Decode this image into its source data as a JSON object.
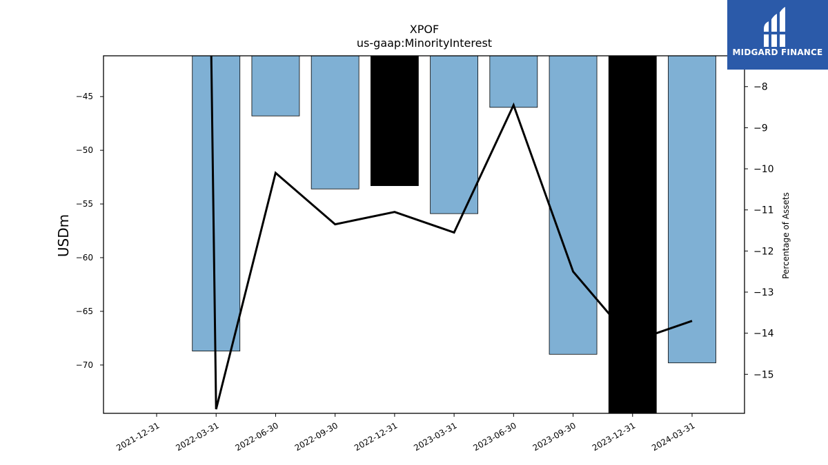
{
  "chart_data": {
    "type": "bar",
    "title": "XPOF",
    "subtitle": "us-gaap:MinorityInterest",
    "ylabel": "USDm",
    "y2label": "Percentage of Assets",
    "categories": [
      "2021-12-31",
      "2022-03-31",
      "2022-06-30",
      "2022-09-30",
      "2022-12-31",
      "2023-03-31",
      "2023-06-30",
      "2023-09-30",
      "2023-12-31",
      "2024-03-31"
    ],
    "ylim": [
      -74.5,
      -41.2
    ],
    "y2lim": [
      -15.95,
      -7.25
    ],
    "yticks": [
      -45,
      -50,
      -55,
      -60,
      -65,
      -70
    ],
    "y2ticks": [
      -8,
      -9,
      -10,
      -11,
      -12,
      -13,
      -14,
      -15
    ],
    "series": [
      {
        "kind": "bar",
        "values": [
          null,
          -68.7,
          -46.8,
          -53.6,
          -53.3,
          -55.9,
          -46.0,
          -69.0,
          -74.5,
          -69.8
        ],
        "colors": [
          "#7fb0d4",
          "#7fb0d4",
          "#7fb0d4",
          "#7fb0d4",
          "#000000",
          "#7fb0d4",
          "#7fb0d4",
          "#7fb0d4",
          "#000000",
          "#7fb0d4"
        ]
      },
      {
        "kind": "line",
        "axis": "right",
        "color": "#000000",
        "values": [
          null,
          -15.85,
          -10.1,
          -11.35,
          -11.05,
          -11.55,
          -8.45,
          -12.5,
          -14.2,
          -13.7
        ]
      }
    ],
    "line_start_above_axis": true
  },
  "logo": {
    "text": "MIDGARD FINANCE"
  }
}
